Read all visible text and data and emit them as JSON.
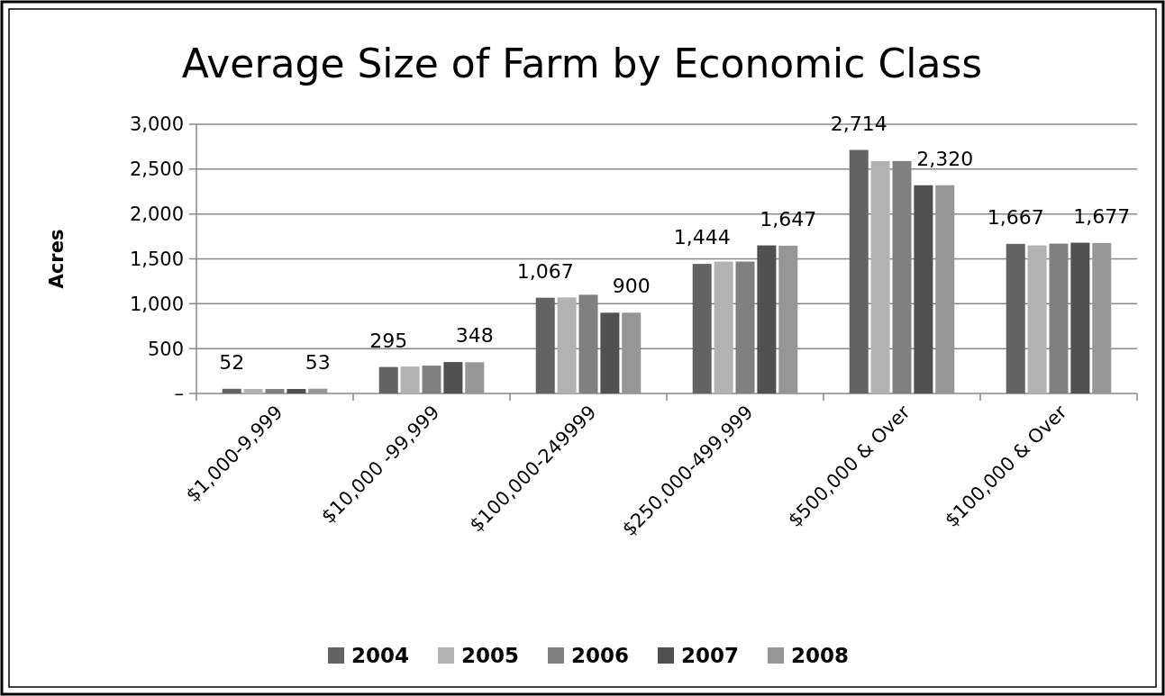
{
  "chart_data": {
    "type": "bar",
    "title": "Average Size of Farm by Economic Class",
    "ylabel": "Acres",
    "categories": [
      "$1,000-9,999",
      "$10,000 -99,999",
      "$100,000-249999",
      "$250,000-499,999",
      "$500,000 & Over",
      "$100,000 & Over"
    ],
    "series": [
      {
        "name": "2004",
        "color": "#636363",
        "values": [
          52,
          295,
          1067,
          1444,
          2714,
          1667
        ],
        "value_labels": [
          "52",
          "295",
          "1,067",
          "1,444",
          "2,714",
          "1,667"
        ]
      },
      {
        "name": "2005",
        "color": "#b2b2b2",
        "values": [
          50,
          300,
          1070,
          1470,
          2590,
          1650
        ]
      },
      {
        "name": "2006",
        "color": "#808080",
        "values": [
          50,
          310,
          1100,
          1470,
          2590,
          1670
        ]
      },
      {
        "name": "2007",
        "color": "#505050",
        "values": [
          50,
          350,
          900,
          1650,
          2320,
          1680
        ]
      },
      {
        "name": "2008",
        "color": "#969696",
        "values": [
          53,
          348,
          900,
          1647,
          2320,
          1677
        ],
        "value_labels": [
          "53",
          "348",
          "900",
          "1,647",
          "2,320",
          "1,677"
        ]
      }
    ],
    "ylim": [
      0,
      3000
    ],
    "yticks": [
      {
        "value": 0,
        "label": "–"
      },
      {
        "value": 500,
        "label": "500"
      },
      {
        "value": 1000,
        "label": "1,000"
      },
      {
        "value": 1500,
        "label": "1,500"
      },
      {
        "value": 2000,
        "label": "2,000"
      },
      {
        "value": 2500,
        "label": "2,500"
      },
      {
        "value": 3000,
        "label": "3,000"
      }
    ],
    "grid": "y",
    "legend": "bottom"
  }
}
